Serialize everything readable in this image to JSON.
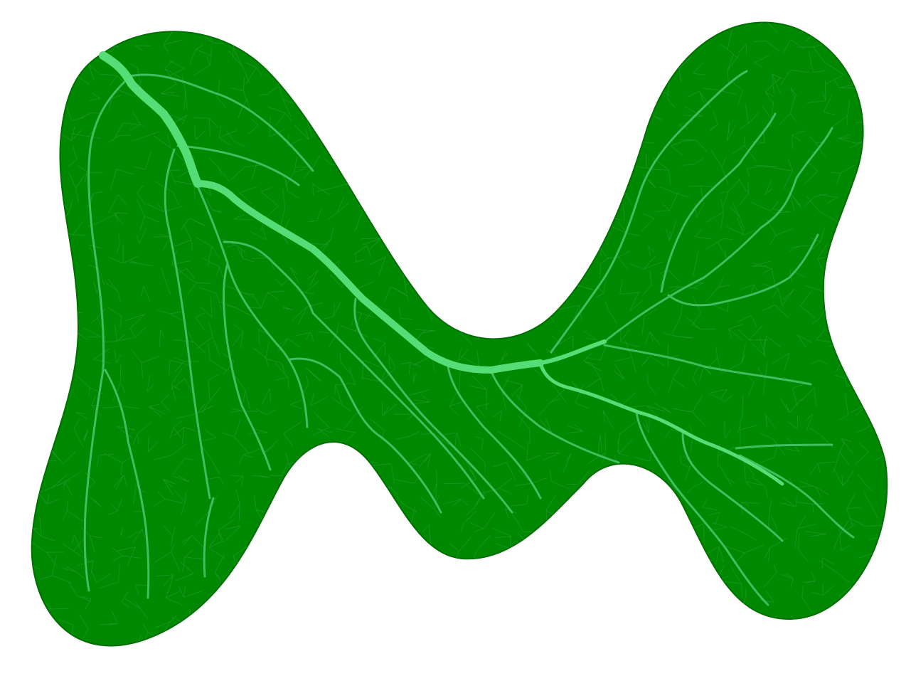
{
  "colors": {
    "background": "#ffffff",
    "leaf_fill": "#008800",
    "leaf_stroke": "#006e00",
    "major_vein": "#55dd77",
    "minor_vein": "#3fbf5f",
    "micro_vein": "#1a9a2a"
  },
  "subject": "leaf-vein-network-icon"
}
